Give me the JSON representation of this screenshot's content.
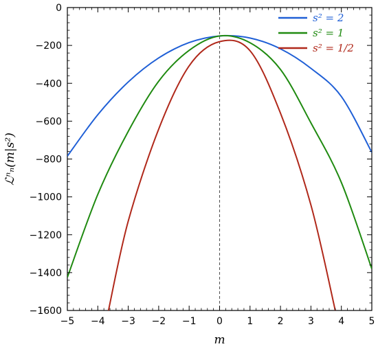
{
  "chart_data": {
    "type": "line",
    "xlabel": "m",
    "ylabel": "ℒⁿₙ(m|s²)",
    "xlim": [
      -5,
      5
    ],
    "ylim": [
      -1600,
      0
    ],
    "x_ticks": [
      -5,
      -4,
      -3,
      -2,
      -1,
      0,
      1,
      2,
      3,
      4,
      5
    ],
    "y_ticks": [
      0,
      -200,
      -400,
      -600,
      -800,
      -1000,
      -1200,
      -1400,
      -1600
    ],
    "x_tick_labels": [
      "−5",
      "−4",
      "−3",
      "−2",
      "−1",
      "0",
      "1",
      "2",
      "3",
      "4",
      "5"
    ],
    "y_tick_labels": [
      "0",
      "−200",
      "−400",
      "−600",
      "−800",
      "−1000",
      "−1200",
      "−1400",
      "−1600"
    ],
    "reference_line": {
      "x": 0,
      "style": "dashed",
      "color": "#555555"
    },
    "legend_position": "top-right",
    "grid": false,
    "series": [
      {
        "name": "s² = 2",
        "color": "#1f5fd6",
        "x": [
          -5,
          -4,
          -3,
          -2,
          -1,
          0,
          1,
          2,
          3,
          4,
          5
        ],
        "y": [
          -785,
          -566,
          -393,
          -266,
          -185,
          -150,
          -161,
          -218,
          -321,
          -470,
          -765
        ]
      },
      {
        "name": "s² = 1",
        "color": "#1f8a10",
        "x": [
          -5,
          -4,
          -3,
          -2,
          -1,
          0,
          1,
          2,
          3,
          4,
          5
        ],
        "y": [
          -1425,
          -987,
          -654,
          -389,
          -226,
          -150,
          -186,
          -327,
          -609,
          -924,
          -1380
        ]
      },
      {
        "name": "s² = 1/2",
        "color": "#b0281a",
        "x": [
          -3.65,
          -3,
          -2,
          -1,
          0,
          1,
          2,
          3,
          3.8
        ],
        "y": [
          -1600,
          -1128,
          -642,
          -308,
          -180,
          -228,
          -558,
          -1043,
          -1600
        ]
      }
    ]
  }
}
